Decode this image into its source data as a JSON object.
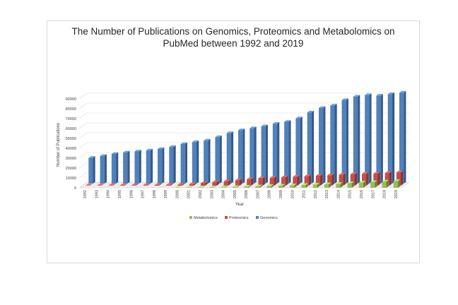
{
  "chart_data": {
    "type": "bar",
    "title_line1": "The Number of Publications on Genomics, Proteomics and Metabolomics on",
    "title_line2": "PubMed between 1992 and 2019",
    "xlabel": "Year",
    "ylabel": "Number of Publications",
    "ylim": [
      0,
      90000
    ],
    "yticks": [
      "0",
      "10000",
      "20000",
      "30000",
      "40000",
      "50000",
      "60000",
      "70000",
      "80000",
      "90000"
    ],
    "categories": [
      "1992",
      "1993",
      "1994",
      "1995",
      "1996",
      "1997",
      "1998",
      "1999",
      "2000",
      "2001",
      "2002",
      "2003",
      "2004",
      "2005",
      "2006",
      "2007",
      "2008",
      "2009",
      "2010",
      "2011",
      "2012",
      "2013",
      "2014",
      "2015",
      "2016",
      "2017",
      "2018",
      "2019"
    ],
    "series": [
      {
        "name": "Metabolomics",
        "color": "#9bbb59",
        "values": [
          0,
          0,
          0,
          0,
          0,
          0,
          0,
          0,
          100,
          200,
          300,
          400,
          600,
          900,
          1200,
          1500,
          1800,
          2200,
          2500,
          2900,
          3300,
          3600,
          4000,
          4700,
          5300,
          5900,
          6300,
          6800
        ]
      },
      {
        "name": "Proteomics",
        "color": "#c0504d",
        "values": [
          100,
          200,
          300,
          400,
          500,
          600,
          700,
          800,
          1000,
          1500,
          2500,
          3500,
          4500,
          5500,
          6500,
          7500,
          8000,
          8500,
          9000,
          9500,
          10000,
          10500,
          11000,
          11500,
          12000,
          12200,
          12800,
          13500
        ]
      },
      {
        "name": "Genomics",
        "color": "#4f81bd",
        "values": [
          26000,
          28000,
          30000,
          31500,
          32500,
          33500,
          35000,
          37000,
          40000,
          42000,
          43500,
          47000,
          51000,
          54000,
          56000,
          58000,
          60500,
          62500,
          66000,
          72000,
          76500,
          79000,
          84500,
          88000,
          89500,
          89000,
          90500,
          92000
        ]
      }
    ],
    "legend": [
      "Metabolomics",
      "Proteomics",
      "Genomics"
    ],
    "legend_position": "bottom"
  }
}
